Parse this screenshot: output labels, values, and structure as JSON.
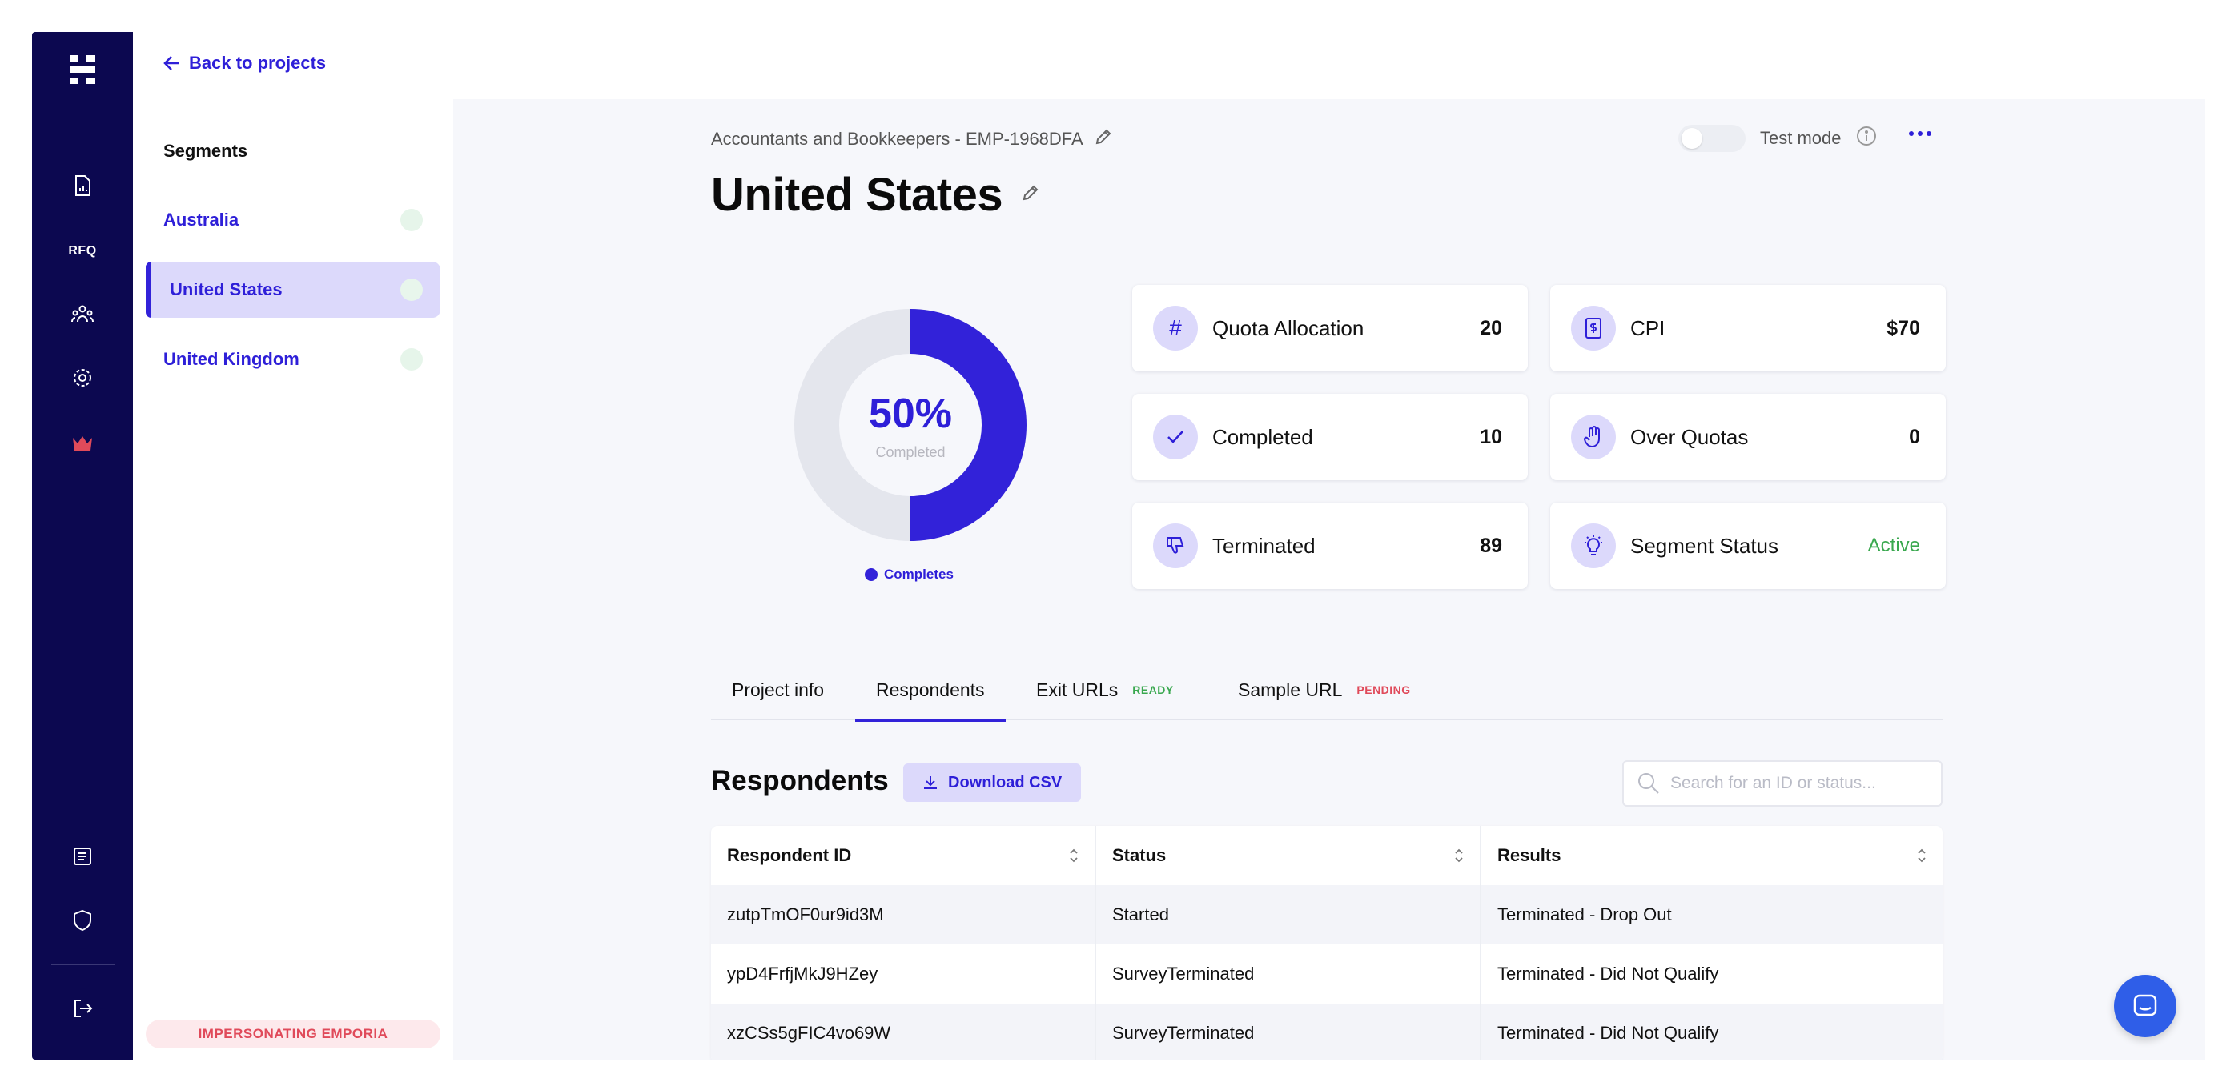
{
  "rail": {
    "rfq_label": "RFQ"
  },
  "sidebar": {
    "back_label": "Back to projects",
    "heading": "Segments",
    "segments": [
      {
        "label": "Australia",
        "active": false
      },
      {
        "label": "United States",
        "active": true
      },
      {
        "label": "United Kingdom",
        "active": false
      }
    ],
    "impersonation": "IMPERSONATING EMPORIA"
  },
  "header": {
    "breadcrumb": "Accountants and Bookkeepers - EMP-1968DFA",
    "title": "United States",
    "test_mode_label": "Test mode"
  },
  "progress": {
    "percent_label": "50%",
    "sublabel": "Completed",
    "fraction": 0.5,
    "legend": "Completes",
    "color": "#3222d9"
  },
  "stats": {
    "quota_allocation": {
      "label": "Quota Allocation",
      "value": "20",
      "icon": "hash-icon"
    },
    "cpi": {
      "label": "CPI",
      "value": "$70",
      "icon": "dollar-icon"
    },
    "completed": {
      "label": "Completed",
      "value": "10",
      "icon": "check-icon"
    },
    "over_quotas": {
      "label": "Over Quotas",
      "value": "0",
      "icon": "hand-icon"
    },
    "terminated": {
      "label": "Terminated",
      "value": "89",
      "icon": "thumbs-down-icon"
    },
    "segment_status": {
      "label": "Segment Status",
      "value": "Active",
      "icon": "lightbulb-icon"
    }
  },
  "tabs": {
    "project_info": "Project info",
    "respondents": "Respondents",
    "exit_urls": "Exit URLs",
    "exit_urls_badge": "READY",
    "sample_url": "Sample URL",
    "sample_url_badge": "PENDING"
  },
  "respondents": {
    "title": "Respondents",
    "download_label": "Download CSV",
    "search_placeholder": "Search for an ID or status...",
    "columns": [
      "Respondent ID",
      "Status",
      "Results"
    ],
    "rows": [
      [
        "zutpTmOF0ur9id3M",
        "Started",
        "Terminated - Drop Out"
      ],
      [
        "ypD4FrfjMkJ9HZey",
        "SurveyTerminated",
        "Terminated - Did Not Qualify"
      ],
      [
        "xzCSs5gFIC4vo69W",
        "SurveyTerminated",
        "Terminated - Did Not Qualify"
      ]
    ]
  },
  "colors": {
    "accent": "#2e1fd8",
    "rail": "#0c0850",
    "success": "#3aa84f",
    "danger": "#e04a5a"
  }
}
